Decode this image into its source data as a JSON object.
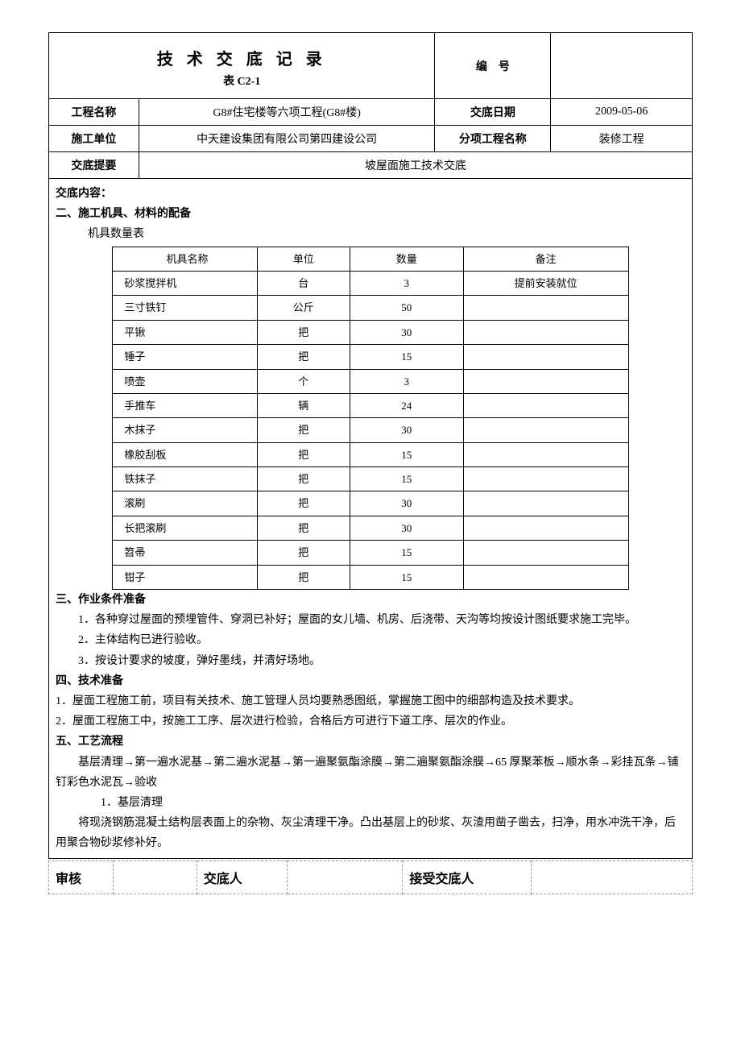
{
  "header": {
    "title": "技 术 交 底 记 录",
    "subtitle": "表 C2-1",
    "number_label": "编　号",
    "number_value": "",
    "project_name_label": "工程名称",
    "project_name": "G8#住宅楼等六项工程(G8#楼)",
    "date_label": "交底日期",
    "date": "2009-05-06",
    "unit_label": "施工单位",
    "unit": "中天建设集团有限公司第四建设公司",
    "subproject_label": "分项工程名称",
    "subproject": "装修工程",
    "summary_label": "交底提要",
    "summary": "坡屋面施工技术交底"
  },
  "content": {
    "heading": "交底内容：",
    "section2_title": "二、施工机具、材料的配备",
    "tools_caption": "机具数量表",
    "tools_table": {
      "columns": [
        "机具名称",
        "单位",
        "数量",
        "备注"
      ],
      "rows": [
        [
          "砂浆搅拌机",
          "台",
          "3",
          "提前安装就位"
        ],
        [
          "三寸铁钉",
          "公斤",
          "50",
          ""
        ],
        [
          "平锹",
          "把",
          "30",
          ""
        ],
        [
          "锤子",
          "把",
          "15",
          ""
        ],
        [
          "喷壶",
          "个",
          "3",
          ""
        ],
        [
          "手推车",
          "辆",
          "24",
          ""
        ],
        [
          "木抹子",
          "把",
          "30",
          ""
        ],
        [
          "橡胶刮板",
          "把",
          "15",
          ""
        ],
        [
          "铁抹子",
          "把",
          "15",
          ""
        ],
        [
          "滚刷",
          "把",
          "30",
          ""
        ],
        [
          "长把滚刷",
          "把",
          "30",
          ""
        ],
        [
          "笤帚",
          "把",
          "15",
          ""
        ],
        [
          "钳子",
          "把",
          "15",
          ""
        ]
      ]
    },
    "section3_title": "三、作业条件准备",
    "section3_items": [
      "1．各种穿过屋面的预埋管件、穿洞已补好；屋面的女儿墙、机房、后浇带、天沟等均按设计图纸要求施工完毕。",
      "2．主体结构已进行验收。",
      "3．按设计要求的坡度，弹好墨线，并清好场地。"
    ],
    "section4_title": "四、技术准备",
    "section4_items": [
      "1．屋面工程施工前，项目有关技术、施工管理人员均要熟悉图纸，掌握施工图中的细部构造及技术要求。",
      "2．屋面工程施工中，按施工工序、层次进行检验，合格后方可进行下道工序、层次的作业。"
    ],
    "section5_title": "五、工艺流程",
    "section5_flow1": "基层清理→第一遍水泥基→第二遍水泥基→第一遍聚氨酯涂膜→第二遍聚氨酯涂膜→65 厚聚苯板→顺水条→彩挂瓦条→铺钉彩色水泥瓦→验收",
    "section5_sub1": "1．基层清理",
    "section5_sub1_text": "将现浇钢筋混凝土结构层表面上的杂物、灰尘清理干净。凸出基层上的砂浆、灰渣用凿子凿去，扫净，用水冲洗干净，后用聚合物砂浆修补好。"
  },
  "footer": {
    "review_label": "审核",
    "sender_label": "交底人",
    "receiver_label": "接受交底人"
  },
  "styling": {
    "text_color": "#000000",
    "background_color": "#ffffff",
    "border_color": "#000000",
    "dashed_border_color": "#999999",
    "title_fontsize": 20,
    "body_fontsize": 14,
    "tools_fontsize": 13
  }
}
